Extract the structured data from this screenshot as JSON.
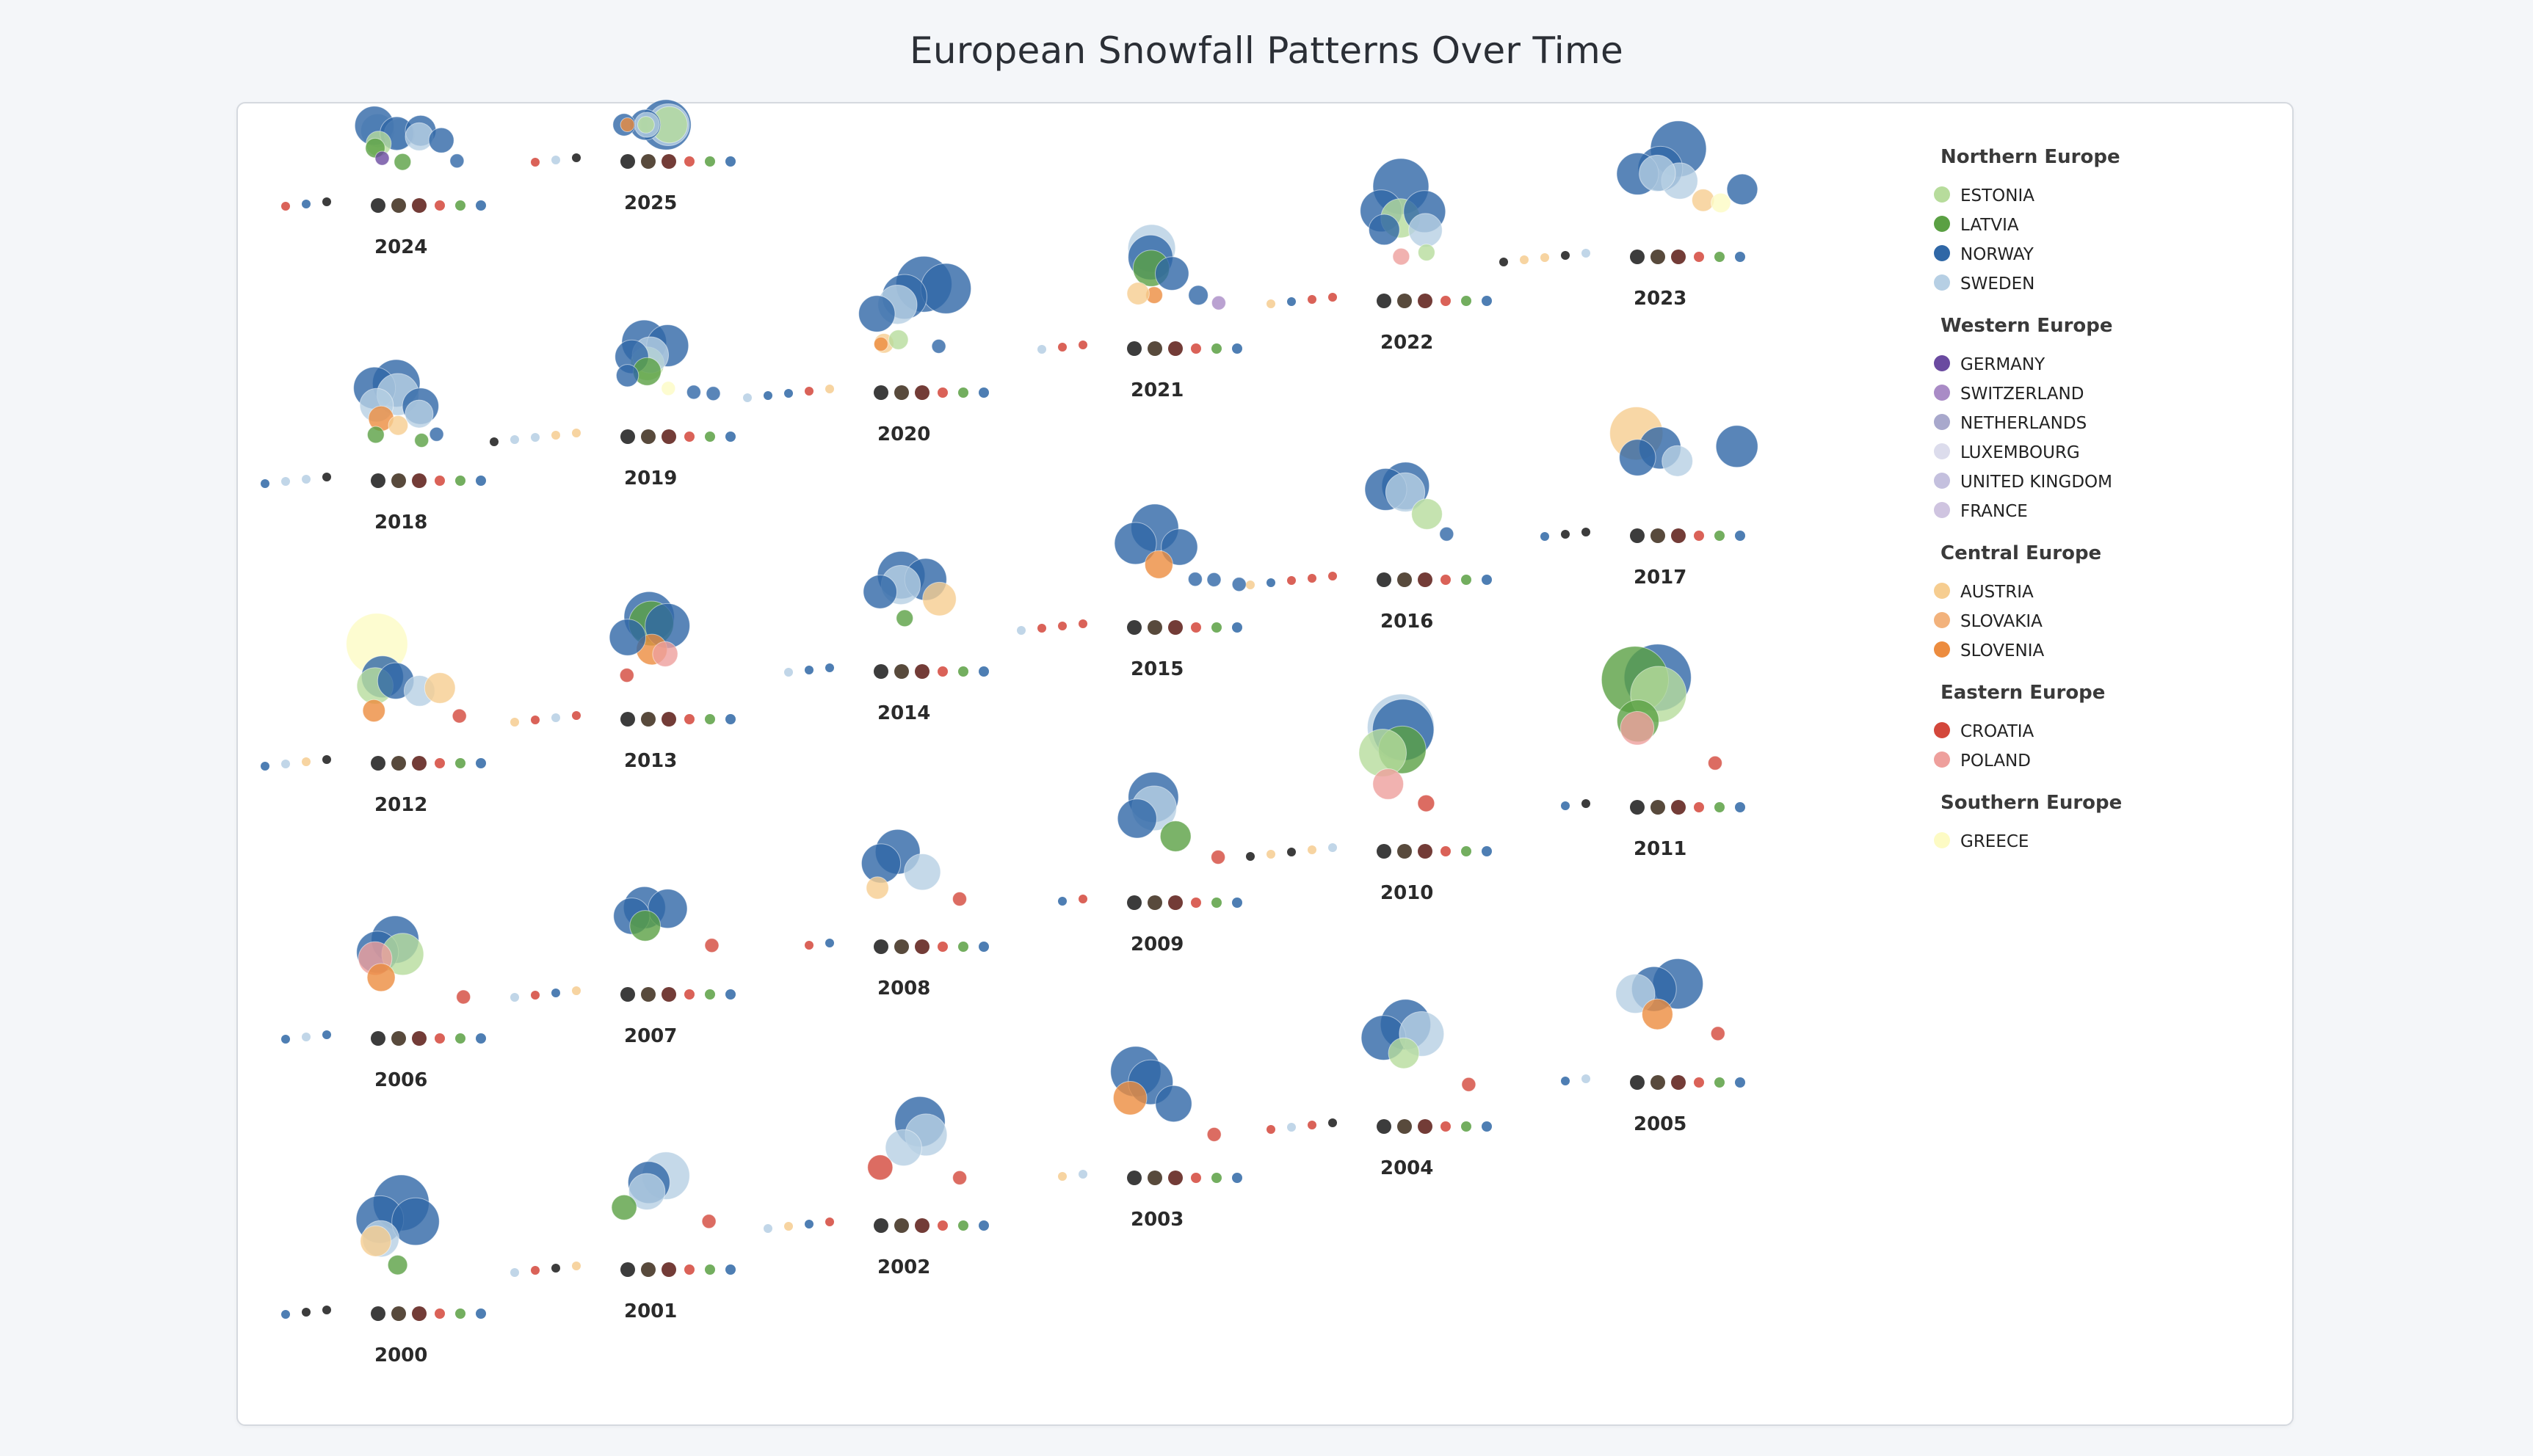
{
  "page": {
    "title": "European Snowfall Patterns Over Time"
  },
  "legend_groups": [
    {
      "title": "Northern Europe",
      "items": [
        {
          "label": "ESTONIA",
          "color": "#b7dc9c"
        },
        {
          "label": "LATVIA",
          "color": "#5aa043"
        },
        {
          "label": "NORWAY",
          "color": "#2f67a6"
        },
        {
          "label": "SWEDEN",
          "color": "#b6cfe4"
        }
      ]
    },
    {
      "title": "Western Europe",
      "items": [
        {
          "label": "GERMANY",
          "color": "#6a4aa0"
        },
        {
          "label": "SWITZERLAND",
          "color": "#a98bc6"
        },
        {
          "label": "NETHERLANDS",
          "color": "#a8a8cc"
        },
        {
          "label": "LUXEMBOURG",
          "color": "#dcdcec"
        },
        {
          "label": "UNITED KINGDOM",
          "color": "#c4c0de"
        },
        {
          "label": "FRANCE",
          "color": "#cfc4e0"
        }
      ]
    },
    {
      "title": "Central Europe",
      "items": [
        {
          "label": "AUSTRIA",
          "color": "#f6cd90"
        },
        {
          "label": "SLOVAKIA",
          "color": "#f2b27c"
        },
        {
          "label": "SLOVENIA",
          "color": "#ec8c3f"
        }
      ]
    },
    {
      "title": "Eastern Europe",
      "items": [
        {
          "label": "CROATIA",
          "color": "#d3473b"
        },
        {
          "label": "POLAND",
          "color": "#ee9f9c"
        }
      ]
    },
    {
      "title": "Southern Europe",
      "items": [
        {
          "label": "GREECE",
          "color": "#fdfbc4"
        }
      ]
    }
  ],
  "chart_data": {
    "type": "scatter",
    "title": "European Snowfall Patterns Over Time",
    "layout": "small multiples, one cluster per year",
    "years": [
      {
        "year": "2024",
        "points": [
          [
            "SWEDEN",
            1,
            12
          ],
          [
            "NORWAY",
            1,
            14
          ],
          [
            "SWEDEN",
            2,
            11
          ],
          [
            "NORWAY",
            2,
            12
          ],
          [
            "NORWAY",
            3,
            11
          ],
          [
            "SWEDEN",
            3,
            10
          ],
          [
            "NORWAY",
            4,
            9
          ],
          [
            "ESTONIA",
            1,
            9
          ],
          [
            "LATVIA",
            1,
            7
          ],
          [
            "LATVIA",
            2,
            6
          ],
          [
            "NORWAY",
            5,
            5
          ],
          [
            "GERMANY",
            1,
            5
          ]
        ]
      },
      {
        "year": "2025",
        "points": [
          [
            "NORWAY",
            3,
            18
          ],
          [
            "SWEDEN",
            3,
            15
          ],
          [
            "ESTONIA",
            3,
            13
          ],
          [
            "NORWAY",
            2,
            11
          ],
          [
            "SWEDEN",
            2,
            9
          ],
          [
            "NORWAY",
            1,
            8
          ],
          [
            "ESTONIA",
            2,
            6
          ],
          [
            "SLOVENIA",
            1,
            5
          ]
        ]
      },
      {
        "year": "2018",
        "points": [
          [
            "NORWAY",
            2,
            17
          ],
          [
            "NORWAY",
            1,
            15
          ],
          [
            "SWEDEN",
            2,
            15
          ],
          [
            "NORWAY",
            3,
            13
          ],
          [
            "SWEDEN",
            1,
            12
          ],
          [
            "SWEDEN",
            3,
            10
          ],
          [
            "SLOVENIA",
            1,
            9
          ],
          [
            "AUSTRIA",
            2,
            7
          ],
          [
            "LATVIA",
            1,
            6
          ],
          [
            "NORWAY",
            4,
            5
          ],
          [
            "LATVIA",
            3,
            5
          ]
        ]
      },
      {
        "year": "2019",
        "points": [
          [
            "NORWAY",
            2,
            16
          ],
          [
            "NORWAY",
            3,
            15
          ],
          [
            "ESTONIA",
            2,
            12
          ],
          [
            "SWEDEN",
            2,
            13
          ],
          [
            "NORWAY",
            1,
            12
          ],
          [
            "LATVIA",
            2,
            10
          ],
          [
            "GREECE",
            3,
            5
          ],
          [
            "NORWAY",
            4,
            5
          ],
          [
            "NORWAY",
            5,
            5
          ],
          [
            "NORWAY",
            1,
            8
          ]
        ]
      },
      {
        "year": "2020",
        "points": [
          [
            "NORWAY",
            3,
            20
          ],
          [
            "NORWAY",
            4,
            18
          ],
          [
            "NORWAY",
            2,
            16
          ],
          [
            "SWEDEN",
            2,
            14
          ],
          [
            "NORWAY",
            1,
            13
          ],
          [
            "AUSTRIA",
            1,
            7
          ],
          [
            "ESTONIA",
            2,
            7
          ],
          [
            "NORWAY",
            4,
            5
          ],
          [
            "SLOVENIA",
            1,
            5
          ]
        ]
      },
      {
        "year": "2021",
        "points": [
          [
            "SWEDEN",
            2,
            17
          ],
          [
            "NORWAY",
            2,
            16
          ],
          [
            "LATVIA",
            2,
            13
          ],
          [
            "NORWAY",
            3,
            12
          ],
          [
            "SLOVENIA",
            2,
            6
          ],
          [
            "NORWAY",
            4,
            7
          ],
          [
            "SWITZERLAND",
            5,
            5
          ],
          [
            "AUSTRIA",
            1,
            8
          ]
        ]
      },
      {
        "year": "2022",
        "points": [
          [
            "NORWAY",
            2,
            20
          ],
          [
            "NORWAY",
            1,
            15
          ],
          [
            "ESTONIA",
            2,
            14
          ],
          [
            "NORWAY",
            3,
            15
          ],
          [
            "SWEDEN",
            3,
            12
          ],
          [
            "NORWAY",
            1,
            11
          ],
          [
            "POLAND",
            2,
            6
          ],
          [
            "ESTONIA",
            3,
            6
          ]
        ]
      },
      {
        "year": "2023",
        "points": [
          [
            "NORWAY",
            3,
            20
          ],
          [
            "NORWAY",
            2,
            16
          ],
          [
            "NORWAY",
            1,
            15
          ],
          [
            "SWEDEN",
            3,
            13
          ],
          [
            "SWEDEN",
            2,
            13
          ],
          [
            "AUSTRIA",
            4,
            8
          ],
          [
            "GREECE",
            5,
            7
          ],
          [
            "NORWAY",
            6,
            11
          ]
        ]
      },
      {
        "year": "2012",
        "points": [
          [
            "GREECE",
            1,
            22
          ],
          [
            "NORWAY",
            1,
            15
          ],
          [
            "ESTONIA",
            1,
            13
          ],
          [
            "NORWAY",
            2,
            13
          ],
          [
            "SWEDEN",
            3,
            11
          ],
          [
            "SLOVENIA",
            1,
            8
          ],
          [
            "AUSTRIA",
            4,
            11
          ],
          [
            "CROATIA",
            5,
            5
          ]
        ]
      },
      {
        "year": "2013",
        "points": [
          [
            "NORWAY",
            2,
            18
          ],
          [
            "LATVIA",
            2,
            16
          ],
          [
            "NORWAY",
            3,
            16
          ],
          [
            "SLOVENIA",
            2,
            11
          ],
          [
            "POLAND",
            3,
            9
          ],
          [
            "NORWAY",
            1,
            13
          ],
          [
            "CROATIA",
            1,
            5
          ]
        ]
      },
      {
        "year": "2014",
        "points": [
          [
            "NORWAY",
            2,
            17
          ],
          [
            "NORWAY",
            3,
            15
          ],
          [
            "SWEDEN",
            2,
            14
          ],
          [
            "NORWAY",
            1,
            12
          ],
          [
            "AUSTRIA",
            4,
            12
          ],
          [
            "LATVIA",
            2,
            6
          ]
        ]
      },
      {
        "year": "2015",
        "points": [
          [
            "NORWAY",
            2,
            17
          ],
          [
            "NORWAY",
            1,
            15
          ],
          [
            "NORWAY",
            3,
            13
          ],
          [
            "SLOVENIA",
            2,
            10
          ],
          [
            "NORWAY",
            4,
            5
          ],
          [
            "NORWAY",
            5,
            5
          ],
          [
            "NORWAY",
            6,
            5
          ]
        ]
      },
      {
        "year": "2016",
        "points": [
          [
            "NORWAY",
            2,
            17
          ],
          [
            "NORWAY",
            1,
            15
          ],
          [
            "SWEDEN",
            2,
            14
          ],
          [
            "ESTONIA",
            3,
            11
          ],
          [
            "NORWAY",
            4,
            5
          ]
        ]
      },
      {
        "year": "2017",
        "points": [
          [
            "AUSTRIA",
            1,
            19
          ],
          [
            "NORWAY",
            2,
            15
          ],
          [
            "NORWAY",
            1,
            13
          ],
          [
            "SWEDEN",
            3,
            11
          ],
          [
            "NORWAY",
            6,
            15
          ]
        ]
      },
      {
        "year": "2010",
        "points": [
          [
            "SWEDEN",
            2,
            24
          ],
          [
            "NORWAY",
            2,
            22
          ],
          [
            "LATVIA",
            2,
            17
          ],
          [
            "ESTONIA",
            1,
            17
          ],
          [
            "POLAND",
            1,
            11
          ],
          [
            "CROATIA",
            3,
            6
          ]
        ]
      },
      {
        "year": "2011",
        "points": [
          [
            "NORWAY",
            2,
            24
          ],
          [
            "LATVIA",
            1,
            24
          ],
          [
            "ESTONIA",
            2,
            20
          ],
          [
            "LATVIA",
            1,
            15
          ],
          [
            "POLAND",
            1,
            12
          ],
          [
            "CROATIA",
            5,
            5
          ]
        ]
      },
      {
        "year": "2006",
        "points": [
          [
            "NORWAY",
            2,
            17
          ],
          [
            "NORWAY",
            1,
            15
          ],
          [
            "ESTONIA",
            2,
            15
          ],
          [
            "POLAND",
            1,
            12
          ],
          [
            "SLOVENIA",
            1,
            10
          ],
          [
            "CROATIA",
            5,
            5
          ]
        ]
      },
      {
        "year": "2007",
        "points": [
          [
            "NORWAY",
            2,
            15
          ],
          [
            "NORWAY",
            3,
            14
          ],
          [
            "NORWAY",
            1,
            13
          ],
          [
            "LATVIA",
            2,
            11
          ],
          [
            "CROATIA",
            5,
            5
          ]
        ]
      },
      {
        "year": "2008",
        "points": [
          [
            "NORWAY",
            2,
            16
          ],
          [
            "NORWAY",
            1,
            14
          ],
          [
            "SWEDEN",
            3,
            13
          ],
          [
            "AUSTRIA",
            1,
            8
          ],
          [
            "CROATIA",
            5,
            5
          ]
        ]
      },
      {
        "year": "2009",
        "points": [
          [
            "NORWAY",
            2,
            18
          ],
          [
            "SWEDEN",
            2,
            16
          ],
          [
            "NORWAY",
            1,
            14
          ],
          [
            "LATVIA",
            3,
            11
          ],
          [
            "CROATIA",
            5,
            5
          ]
        ]
      },
      {
        "year": "2004",
        "points": [
          [
            "NORWAY",
            2,
            18
          ],
          [
            "NORWAY",
            1,
            16
          ],
          [
            "SWEDEN",
            3,
            16
          ],
          [
            "ESTONIA",
            2,
            11
          ],
          [
            "CROATIA",
            5,
            5
          ]
        ]
      },
      {
        "year": "2005",
        "points": [
          [
            "NORWAY",
            3,
            18
          ],
          [
            "NORWAY",
            2,
            16
          ],
          [
            "SWEDEN",
            1,
            14
          ],
          [
            "SLOVENIA",
            2,
            11
          ],
          [
            "CROATIA",
            5,
            5
          ]
        ]
      },
      {
        "year": "2000",
        "points": [
          [
            "NORWAY",
            2,
            20
          ],
          [
            "NORWAY",
            1,
            17
          ],
          [
            "NORWAY",
            3,
            17
          ],
          [
            "SWEDEN",
            1,
            13
          ],
          [
            "AUSTRIA",
            1,
            11
          ],
          [
            "LATVIA",
            2,
            7
          ]
        ]
      },
      {
        "year": "2001",
        "points": [
          [
            "SWEDEN",
            3,
            17
          ],
          [
            "NORWAY",
            2,
            15
          ],
          [
            "SWEDEN",
            2,
            13
          ],
          [
            "LATVIA",
            1,
            9
          ],
          [
            "CROATIA",
            5,
            5
          ]
        ]
      },
      {
        "year": "2002",
        "points": [
          [
            "NORWAY",
            3,
            18
          ],
          [
            "SWEDEN",
            3,
            15
          ],
          [
            "SWEDEN",
            2,
            13
          ],
          [
            "CROATIA",
            1,
            9
          ],
          [
            "CROATIA",
            5,
            5
          ]
        ]
      },
      {
        "year": "2003",
        "points": [
          [
            "NORWAY",
            1,
            18
          ],
          [
            "NORWAY",
            2,
            16
          ],
          [
            "NORWAY",
            3,
            13
          ],
          [
            "SLOVENIA",
            1,
            12
          ],
          [
            "CROATIA",
            5,
            5
          ]
        ]
      }
    ]
  }
}
